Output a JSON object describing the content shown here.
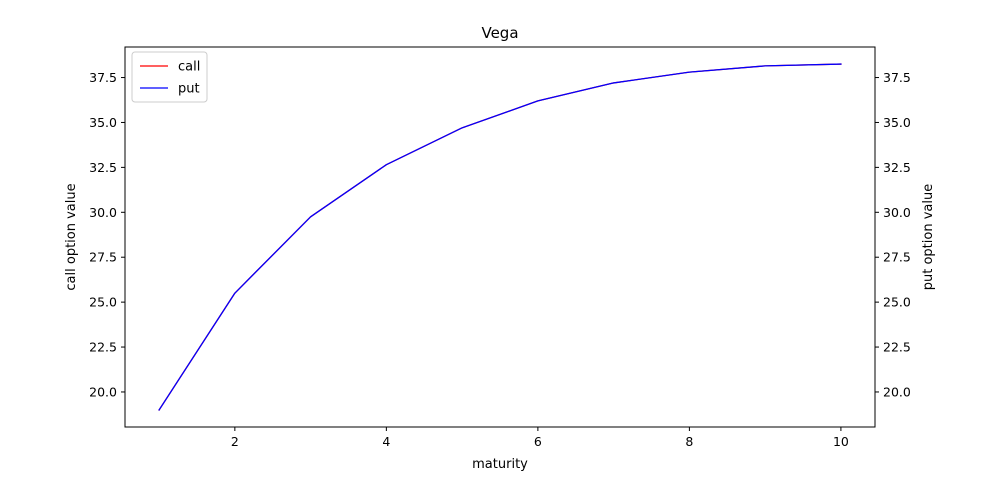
{
  "chart_data": {
    "type": "line",
    "title": "Vega",
    "xlabel": "maturity",
    "ylabel_left": "call option value",
    "ylabel_right": "put option value",
    "xlim": [
      0.55,
      10.45
    ],
    "ylim_left": [
      18.05,
      39.2
    ],
    "ylim_right": [
      18.05,
      39.2
    ],
    "x_ticks": [
      2,
      4,
      6,
      8,
      10
    ],
    "y_ticks": [
      20.0,
      22.5,
      25.0,
      27.5,
      30.0,
      32.5,
      35.0,
      37.5
    ],
    "x_tick_labels": [
      "2",
      "4",
      "6",
      "8",
      "10"
    ],
    "y_tick_labels": [
      "20.0",
      "22.5",
      "25.0",
      "27.5",
      "30.0",
      "32.5",
      "35.0",
      "37.5"
    ],
    "grid": false,
    "legend_placement": "top-left",
    "x": [
      1,
      2,
      3,
      4,
      5,
      6,
      7,
      8,
      9,
      10
    ],
    "series": [
      {
        "name": "call",
        "axis": "left",
        "color": "#ff0000",
        "values": [
          19.0,
          25.5,
          29.75,
          32.65,
          34.7,
          36.2,
          37.2,
          37.8,
          38.15,
          38.25
        ]
      },
      {
        "name": "put",
        "axis": "right",
        "color": "#0000ff",
        "values": [
          19.0,
          25.5,
          29.75,
          32.65,
          34.7,
          36.2,
          37.2,
          37.8,
          38.15,
          38.25
        ]
      }
    ]
  }
}
